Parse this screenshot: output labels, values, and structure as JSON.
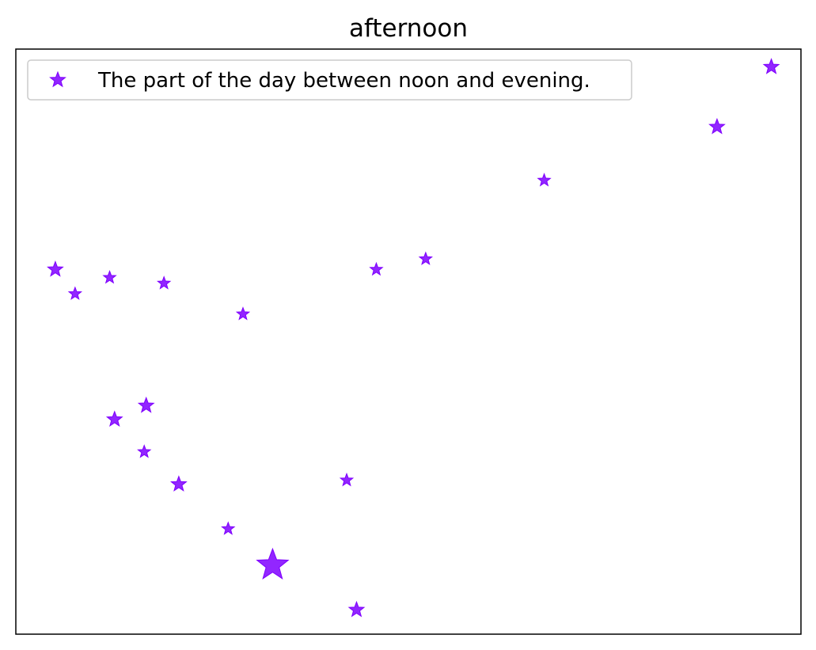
{
  "chart_data": {
    "type": "scatter",
    "title": "afternoon",
    "xlabel": "",
    "ylabel": "",
    "xticks": false,
    "yticks": false,
    "grid": false,
    "legend_position": "top-left",
    "marker": "star",
    "color": "#7f00ff",
    "series": [
      {
        "name": "The part of the day between noon and evening.",
        "points": [
          {
            "x": 0.1,
            "y": 1.6,
            "size": 1.0
          },
          {
            "x": 0.3,
            "y": 1.3,
            "size": 0.8
          },
          {
            "x": 0.65,
            "y": 1.5,
            "size": 0.8
          },
          {
            "x": 1.2,
            "y": 1.43,
            "size": 0.8
          },
          {
            "x": 2.0,
            "y": 1.05,
            "size": 0.8
          },
          {
            "x": 0.7,
            "y": -0.25,
            "size": 1.0
          },
          {
            "x": 1.0,
            "y": -0.65,
            "size": 0.8
          },
          {
            "x": 1.02,
            "y": -0.08,
            "size": 1.0
          },
          {
            "x": 1.35,
            "y": -1.05,
            "size": 1.0
          },
          {
            "x": 1.85,
            "y": -1.6,
            "size": 0.8
          },
          {
            "x": 2.3,
            "y": -2.05,
            "size": 2.2
          },
          {
            "x": 3.05,
            "y": -1.0,
            "size": 0.8
          },
          {
            "x": 3.15,
            "y": -2.6,
            "size": 1.0
          },
          {
            "x": 3.35,
            "y": 1.6,
            "size": 0.8
          },
          {
            "x": 3.85,
            "y": 1.73,
            "size": 0.8
          },
          {
            "x": 5.05,
            "y": 2.7,
            "size": 0.8
          },
          {
            "x": 6.8,
            "y": 3.36,
            "size": 1.0
          },
          {
            "x": 7.35,
            "y": 4.1,
            "size": 1.0
          }
        ]
      }
    ],
    "xlim": [
      -0.3,
      7.65
    ],
    "ylim": [
      -2.9,
      4.32
    ]
  }
}
